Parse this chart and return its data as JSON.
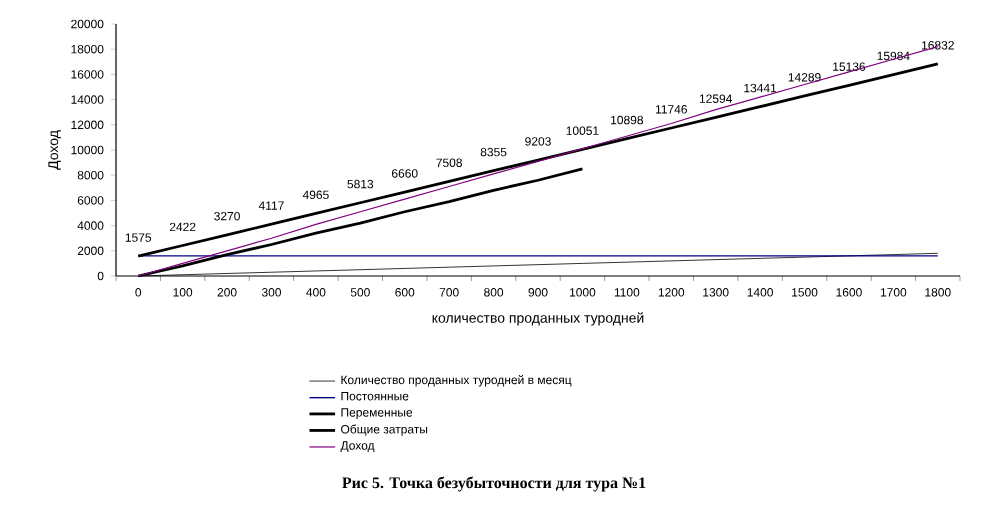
{
  "chart_data": {
    "type": "line",
    "title": "Рис 5. Точка безубыточности для тура №1",
    "xlabel": "количество проданных туродней",
    "ylabel": "Доход",
    "categories": [
      "0",
      "100",
      "200",
      "300",
      "400",
      "500",
      "600",
      "700",
      "800",
      "900",
      "1000",
      "1100",
      "1200",
      "1300",
      "1400",
      "1500",
      "1600",
      "1700",
      "1800"
    ],
    "ylim": [
      0,
      20000
    ],
    "yticks": [
      0,
      2000,
      4000,
      6000,
      8000,
      10000,
      12000,
      14000,
      16000,
      18000,
      20000
    ],
    "legend": "bottom",
    "series": [
      {
        "name": "Количество проданных туродней в месяц",
        "color": "#000000",
        "values": [
          0,
          100,
          200,
          300,
          400,
          500,
          600,
          700,
          800,
          900,
          1000,
          1100,
          1200,
          1300,
          1400,
          1500,
          1600,
          1700,
          1800
        ]
      },
      {
        "name": "Постоянные",
        "color": "#000080",
        "values": [
          1600,
          1600,
          1600,
          1600,
          1600,
          1600,
          1600,
          1600,
          1600,
          1600,
          1600,
          1600,
          1600,
          1600,
          1600,
          1600,
          1600,
          1600,
          1600
        ]
      },
      {
        "name": "Переменные",
        "color": "#000000",
        "values": [
          0,
          800,
          1700,
          2500,
          3400,
          4200,
          5100,
          5900,
          6800,
          7600,
          8500,
          null,
          null,
          null,
          null,
          null,
          null,
          null,
          null
        ]
      },
      {
        "name": "Общие затраты",
        "color": "#000000",
        "values": [
          1575,
          2422,
          3270,
          4117,
          4965,
          5813,
          6660,
          7508,
          8355,
          9203,
          10051,
          10898,
          11746,
          12594,
          13441,
          14289,
          15136,
          15984,
          16832
        ],
        "value_labels": [
          "1575",
          "2422",
          "3270",
          "4117",
          "4965",
          "5813",
          "6660",
          "7508",
          "8355",
          "9203",
          "10051",
          "10898",
          "11746",
          "12594",
          "13441",
          "14289",
          "15136",
          "15984",
          "16832"
        ]
      },
      {
        "name": "Доход",
        "color": "#800080",
        "values": [
          0,
          1000,
          2000,
          3000,
          4100,
          5100,
          6100,
          7100,
          8100,
          9100,
          10100,
          11100,
          12100,
          13200,
          14200,
          15200,
          16200,
          17200,
          18200
        ]
      }
    ]
  }
}
